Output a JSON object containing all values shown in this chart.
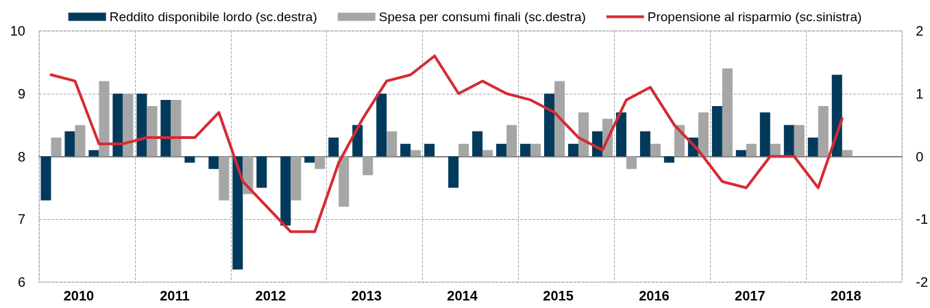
{
  "chart_data": {
    "type": "bar",
    "categories": [
      null,
      "2010",
      null,
      null,
      null,
      "2011",
      null,
      null,
      null,
      "2012",
      null,
      null,
      null,
      "2013",
      null,
      null,
      null,
      "2014",
      null,
      null,
      null,
      "2015",
      null,
      null,
      null,
      "2016",
      null,
      null,
      null,
      "2017",
      null,
      null,
      null,
      "2018",
      null,
      null
    ],
    "series": [
      {
        "name": "Reddito disponibile lordo (sc.destra)",
        "color": "#023a5c",
        "axis": "y2",
        "values": [
          -0.7,
          0.4,
          0.1,
          1.0,
          1.0,
          0.9,
          -0.1,
          -0.2,
          -1.8,
          -0.5,
          -1.1,
          -0.1,
          0.3,
          0.5,
          1.0,
          0.2,
          0.2,
          -0.5,
          0.4,
          0.2,
          0.2,
          1.0,
          0.2,
          0.4,
          0.7,
          0.4,
          -0.1,
          0.3,
          0.8,
          0.1,
          0.7,
          0.5,
          0.3,
          1.3,
          null,
          null
        ]
      },
      {
        "name": "Spesa per consumi finali (sc.destra)",
        "color": "#a6a6a6",
        "axis": "y2",
        "values": [
          0.3,
          0.5,
          1.2,
          1.0,
          0.8,
          0.9,
          0,
          -0.7,
          -0.6,
          0,
          -0.7,
          -0.2,
          -0.8,
          -0.3,
          0.4,
          0.1,
          0,
          0.2,
          0.1,
          0.5,
          0.2,
          1.2,
          0.7,
          0.6,
          -0.2,
          0.2,
          0.5,
          0.7,
          1.4,
          0.2,
          0.2,
          0.5,
          0.8,
          0.1,
          null,
          null
        ]
      },
      {
        "name": "Propensione al risparmio (sc.sinistra)",
        "type": "line",
        "color": "#d52b33",
        "values": [
          9.3,
          9.2,
          8.2,
          8.2,
          8.3,
          8.3,
          8.3,
          8.7,
          7.6,
          7.2,
          6.8,
          6.8,
          7.9,
          8.6,
          9.2,
          9.3,
          9.6,
          9.0,
          9.2,
          9.0,
          8.9,
          8.7,
          8.3,
          8.1,
          8.9,
          9.1,
          8.5,
          8.1,
          7.6,
          7.5,
          8.0,
          8.0,
          7.5,
          8.6,
          null,
          null
        ]
      }
    ],
    "ylim": [
      6,
      10
    ],
    "yticks": [
      6,
      7,
      8,
      9,
      10
    ],
    "y2lim": [
      -2,
      2
    ],
    "y2ticks": [
      -2,
      -1,
      0,
      1,
      2
    ],
    "grid": true,
    "legend": "top",
    "marker": "none",
    "line_style": "solid"
  }
}
